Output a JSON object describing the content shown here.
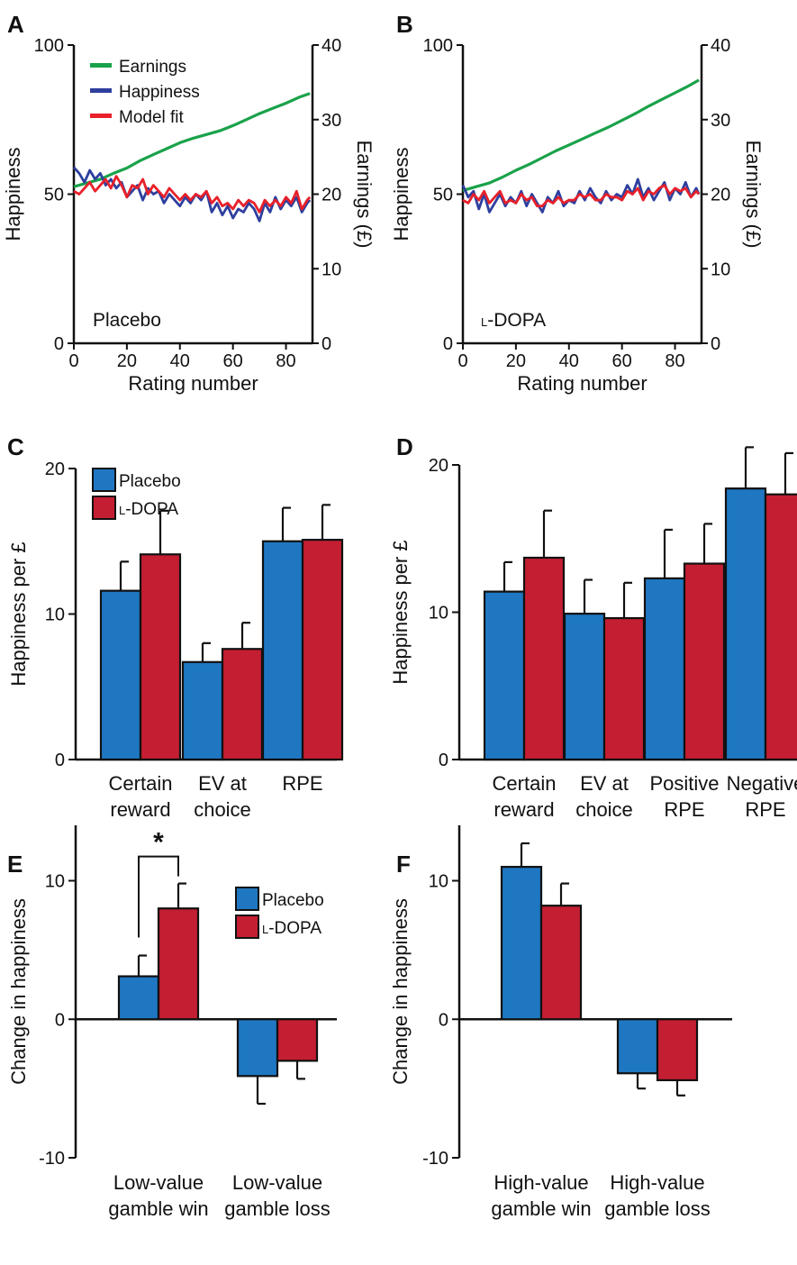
{
  "chart_data": [
    {
      "id": "A",
      "type": "line",
      "panel_label": "A",
      "inline_label": "Placebo",
      "xlabel": "Rating number",
      "ylabel": "Happiness",
      "y2label": "Earnings (£)",
      "xlim": [
        0,
        90
      ],
      "ylim": [
        0,
        100
      ],
      "y2lim": [
        0,
        40
      ],
      "x_ticks": [
        0,
        20,
        40,
        60,
        80
      ],
      "y_ticks": [
        0,
        50,
        100
      ],
      "y2_ticks": [
        0,
        10,
        20,
        30,
        40
      ],
      "legend": [
        "Earnings",
        "Happiness",
        "Model fit"
      ],
      "legend_position": "top-left",
      "colors": {
        "Earnings": "#1aa24a",
        "Happiness": "#2e3f9e",
        "Model fit": "#e8202a"
      },
      "series": [
        {
          "name": "Earnings",
          "axis": "right",
          "x": [
            0,
            5,
            10,
            15,
            20,
            25,
            30,
            35,
            40,
            45,
            50,
            55,
            60,
            65,
            70,
            75,
            80,
            85,
            89
          ],
          "values": [
            21,
            21.5,
            22,
            22.8,
            23.5,
            24.5,
            25.3,
            26.1,
            26.9,
            27.5,
            28,
            28.5,
            29.2,
            30,
            30.8,
            31.5,
            32.2,
            33,
            33.5
          ]
        },
        {
          "name": "Happiness",
          "axis": "left",
          "x": [
            0,
            2,
            4,
            6,
            8,
            10,
            12,
            14,
            16,
            18,
            20,
            22,
            24,
            26,
            28,
            30,
            32,
            34,
            36,
            38,
            40,
            42,
            44,
            46,
            48,
            50,
            52,
            54,
            56,
            58,
            60,
            62,
            64,
            66,
            68,
            70,
            72,
            74,
            76,
            78,
            80,
            82,
            84,
            86,
            88,
            89
          ],
          "values": [
            59,
            57,
            54,
            58,
            55,
            57,
            53,
            55,
            52,
            54,
            49,
            51,
            53,
            48,
            52,
            50,
            51,
            47,
            50,
            48,
            46,
            49,
            47,
            50,
            48,
            51,
            44,
            47,
            43,
            46,
            42,
            45,
            44,
            47,
            45,
            41,
            47,
            44,
            49,
            45,
            48,
            46,
            49,
            44,
            47,
            48
          ]
        },
        {
          "name": "Model fit",
          "axis": "left",
          "x": [
            0,
            2,
            4,
            6,
            8,
            10,
            12,
            14,
            16,
            18,
            20,
            22,
            24,
            26,
            28,
            30,
            32,
            34,
            36,
            38,
            40,
            42,
            44,
            46,
            48,
            50,
            52,
            54,
            56,
            58,
            60,
            62,
            64,
            66,
            68,
            70,
            72,
            74,
            76,
            78,
            80,
            82,
            84,
            86,
            88,
            89
          ],
          "values": [
            51,
            50,
            52,
            54,
            51,
            53,
            55,
            52,
            56,
            53,
            49,
            53,
            52,
            55,
            50,
            53,
            51,
            49,
            52,
            50,
            48,
            50,
            48,
            50,
            49,
            51,
            47,
            49,
            46,
            47,
            45,
            48,
            46,
            48,
            47,
            44,
            48,
            46,
            48,
            46,
            49,
            47,
            51,
            45,
            48,
            49
          ]
        }
      ]
    },
    {
      "id": "B",
      "type": "line",
      "panel_label": "B",
      "inline_label_prefix": "L",
      "inline_label": "-DOPA",
      "xlabel": "Rating number",
      "ylabel": "Happiness",
      "y2label": "Earnings (£)",
      "xlim": [
        0,
        90
      ],
      "ylim": [
        0,
        100
      ],
      "y2lim": [
        0,
        40
      ],
      "x_ticks": [
        0,
        20,
        40,
        60,
        80
      ],
      "y_ticks": [
        0,
        50,
        100
      ],
      "y2_ticks": [
        0,
        10,
        20,
        30,
        40
      ],
      "colors": {
        "Earnings": "#1aa24a",
        "Happiness": "#2e3f9e",
        "Model fit": "#e8202a"
      },
      "series": [
        {
          "name": "Earnings",
          "axis": "right",
          "x": [
            0,
            5,
            10,
            15,
            20,
            25,
            30,
            35,
            40,
            45,
            50,
            55,
            60,
            65,
            70,
            75,
            80,
            85,
            89
          ],
          "values": [
            20.5,
            21,
            21.5,
            22.3,
            23.2,
            24,
            24.9,
            25.8,
            26.6,
            27.4,
            28.2,
            29,
            29.9,
            30.8,
            31.8,
            32.7,
            33.6,
            34.5,
            35.3
          ]
        },
        {
          "name": "Happiness",
          "axis": "left",
          "x": [
            0,
            2,
            4,
            6,
            8,
            10,
            12,
            14,
            16,
            18,
            20,
            22,
            24,
            26,
            28,
            30,
            32,
            34,
            36,
            38,
            40,
            42,
            44,
            46,
            48,
            50,
            52,
            54,
            56,
            58,
            60,
            62,
            64,
            66,
            68,
            70,
            72,
            74,
            76,
            78,
            80,
            82,
            84,
            86,
            88,
            89
          ],
          "values": [
            53,
            49,
            51,
            45,
            50,
            44,
            47,
            50,
            46,
            49,
            47,
            51,
            46,
            50,
            47,
            44,
            49,
            47,
            51,
            46,
            48,
            47,
            51,
            48,
            52,
            49,
            47,
            51,
            48,
            50,
            49,
            53,
            50,
            55,
            49,
            52,
            48,
            51,
            54,
            48,
            52,
            50,
            54,
            49,
            52,
            50
          ]
        },
        {
          "name": "Model fit",
          "axis": "left",
          "x": [
            0,
            2,
            4,
            6,
            8,
            10,
            12,
            14,
            16,
            18,
            20,
            22,
            24,
            26,
            28,
            30,
            32,
            34,
            36,
            38,
            40,
            42,
            44,
            46,
            48,
            50,
            52,
            54,
            56,
            58,
            60,
            62,
            64,
            66,
            68,
            70,
            72,
            74,
            76,
            78,
            80,
            82,
            84,
            86,
            88,
            89
          ],
          "values": [
            48,
            47,
            50,
            48,
            51,
            47,
            49,
            51,
            47,
            48,
            47,
            50,
            48,
            49,
            46,
            46,
            48,
            47,
            49,
            47,
            48,
            48,
            50,
            49,
            50,
            48,
            48,
            50,
            49,
            49,
            48,
            51,
            50,
            52,
            48,
            51,
            50,
            52,
            53,
            50,
            52,
            51,
            52,
            49,
            51,
            50
          ]
        }
      ]
    },
    {
      "id": "C",
      "type": "bar",
      "panel_label": "C",
      "ylabel": "Happiness per £",
      "ylim": [
        0,
        20
      ],
      "y_ticks": [
        0,
        10,
        20
      ],
      "legend": [
        "Placebo",
        "L-DOPA"
      ],
      "legend_position": "top-left",
      "categories": [
        [
          "Certain",
          "reward"
        ],
        [
          "EV at",
          "choice"
        ],
        [
          "RPE"
        ]
      ],
      "colors": {
        "Placebo": "#1f77c2",
        "L-DOPA": "#c41e32"
      },
      "series": [
        {
          "name": "Placebo",
          "values": [
            11.6,
            6.7,
            15.0
          ],
          "errors": [
            2.0,
            1.3,
            2.3
          ]
        },
        {
          "name": "L-DOPA",
          "values": [
            14.1,
            7.6,
            15.1
          ],
          "errors": [
            3.0,
            1.8,
            2.4
          ]
        }
      ]
    },
    {
      "id": "D",
      "type": "bar",
      "panel_label": "D",
      "ylabel": "Happiness per £",
      "ylim": [
        0,
        20
      ],
      "y_ticks": [
        0,
        10,
        20
      ],
      "categories": [
        [
          "Certain",
          "reward"
        ],
        [
          "EV at",
          "choice"
        ],
        [
          "Positive",
          "RPE"
        ],
        [
          "Negative",
          "RPE"
        ]
      ],
      "colors": {
        "Placebo": "#1f77c2",
        "L-DOPA": "#c41e32"
      },
      "series": [
        {
          "name": "Placebo",
          "values": [
            11.4,
            9.9,
            12.3,
            18.4
          ],
          "errors": [
            2.0,
            2.3,
            3.3,
            2.8
          ]
        },
        {
          "name": "L-DOPA",
          "values": [
            13.7,
            9.6,
            13.3,
            18.0
          ],
          "errors": [
            3.2,
            2.4,
            2.7,
            2.8
          ]
        }
      ]
    },
    {
      "id": "E",
      "type": "bar",
      "panel_label": "E",
      "ylabel": "Change in happiness",
      "ylim": [
        -10,
        14
      ],
      "y_ticks": [
        -10,
        0,
        10
      ],
      "legend": [
        "Placebo",
        "L-DOPA"
      ],
      "legend_position": "top-right",
      "categories": [
        [
          "Low-value",
          "gamble win"
        ],
        [
          "Low-value",
          "gamble loss"
        ]
      ],
      "colors": {
        "Placebo": "#1f77c2",
        "L-DOPA": "#c41e32"
      },
      "series": [
        {
          "name": "Placebo",
          "values": [
            3.1,
            -4.1
          ],
          "errors": [
            1.5,
            2.0
          ]
        },
        {
          "name": "L-DOPA",
          "values": [
            8.0,
            -3.0
          ],
          "errors": [
            1.8,
            1.3
          ]
        }
      ],
      "annotations": [
        {
          "text": "*",
          "type": "significance",
          "category_index": 0
        }
      ]
    },
    {
      "id": "F",
      "type": "bar",
      "panel_label": "F",
      "ylabel": "Change in happiness",
      "ylim": [
        -10,
        14
      ],
      "y_ticks": [
        -10,
        0,
        10
      ],
      "categories": [
        [
          "High-value",
          "gamble win"
        ],
        [
          "High-value",
          "gamble loss"
        ]
      ],
      "colors": {
        "Placebo": "#1f77c2",
        "L-DOPA": "#c41e32"
      },
      "series": [
        {
          "name": "Placebo",
          "values": [
            11.0,
            -3.9
          ],
          "errors": [
            1.7,
            1.1
          ]
        },
        {
          "name": "L-DOPA",
          "values": [
            8.2,
            -4.4
          ],
          "errors": [
            1.6,
            1.1
          ]
        }
      ]
    }
  ]
}
